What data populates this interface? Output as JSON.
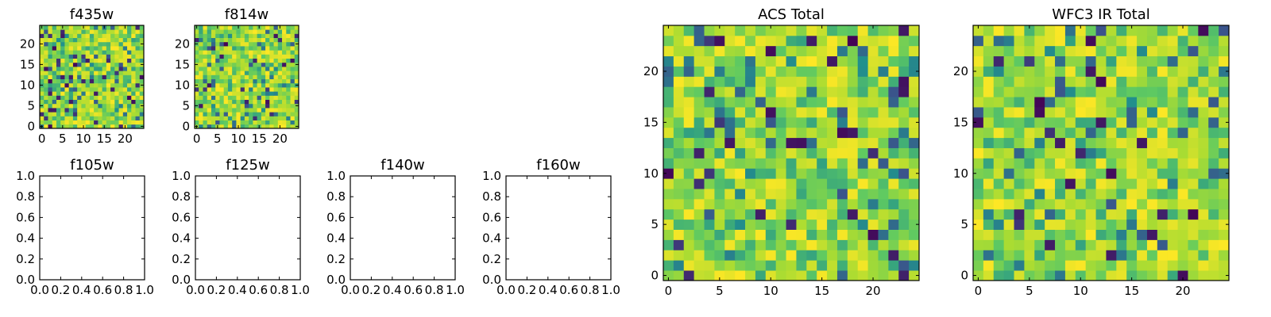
{
  "chart_data": [
    {
      "type": "heatmap",
      "title": "f435w",
      "grid_size": 25,
      "xticks": [
        0,
        5,
        10,
        15,
        20
      ],
      "yticks": [
        0,
        5,
        10,
        15,
        20
      ],
      "xlim": [
        -0.5,
        24.5
      ],
      "ylim": [
        -0.5,
        24.5
      ],
      "colormap": "viridis",
      "note_values": "pixel intensities appear as random noise; exact values not recoverable"
    },
    {
      "type": "heatmap",
      "title": "f814w",
      "grid_size": 25,
      "xticks": [
        0,
        5,
        10,
        15,
        20
      ],
      "yticks": [
        0,
        5,
        10,
        15,
        20
      ],
      "xlim": [
        -0.5,
        24.5
      ],
      "ylim": [
        -0.5,
        24.5
      ],
      "colormap": "viridis"
    },
    {
      "type": "line",
      "title": "f105w",
      "series": [],
      "xticks": [
        "0.0",
        "0.2",
        "0.4",
        "0.6",
        "0.8",
        "1.0"
      ],
      "yticks": [
        "0.0",
        "0.2",
        "0.4",
        "0.6",
        "0.8",
        "1.0"
      ],
      "xlim": [
        0,
        1
      ],
      "ylim": [
        0,
        1
      ]
    },
    {
      "type": "line",
      "title": "f125w",
      "series": [],
      "xticks": [
        "0.0",
        "0.2",
        "0.4",
        "0.6",
        "0.8",
        "1.0"
      ],
      "yticks": [
        "0.0",
        "0.2",
        "0.4",
        "0.6",
        "0.8",
        "1.0"
      ],
      "xlim": [
        0,
        1
      ],
      "ylim": [
        0,
        1
      ]
    },
    {
      "type": "line",
      "title": "f140w",
      "series": [],
      "xticks": [
        "0.0",
        "0.2",
        "0.4",
        "0.6",
        "0.8",
        "1.0"
      ],
      "yticks": [
        "0.0",
        "0.2",
        "0.4",
        "0.6",
        "0.8",
        "1.0"
      ],
      "xlim": [
        0,
        1
      ],
      "ylim": [
        0,
        1
      ]
    },
    {
      "type": "line",
      "title": "f160w",
      "series": [],
      "xticks": [
        "0.0",
        "0.2",
        "0.4",
        "0.6",
        "0.8",
        "1.0"
      ],
      "yticks": [
        "0.0",
        "0.2",
        "0.4",
        "0.6",
        "0.8",
        "1.0"
      ],
      "xlim": [
        0,
        1
      ],
      "ylim": [
        0,
        1
      ]
    },
    {
      "type": "heatmap",
      "title": "ACS Total",
      "grid_size": 25,
      "xticks": [
        0,
        5,
        10,
        15,
        20
      ],
      "yticks": [
        0,
        5,
        10,
        15,
        20
      ],
      "xlim": [
        -0.5,
        24.5
      ],
      "ylim": [
        -0.5,
        24.5
      ],
      "colormap": "viridis"
    },
    {
      "type": "heatmap",
      "title": "WFC3 IR Total",
      "grid_size": 25,
      "xticks": [
        0,
        5,
        10,
        15,
        20
      ],
      "yticks": [
        0,
        5,
        10,
        15,
        20
      ],
      "xlim": [
        -0.5,
        24.5
      ],
      "ylim": [
        -0.5,
        24.5
      ],
      "colormap": "viridis"
    }
  ]
}
